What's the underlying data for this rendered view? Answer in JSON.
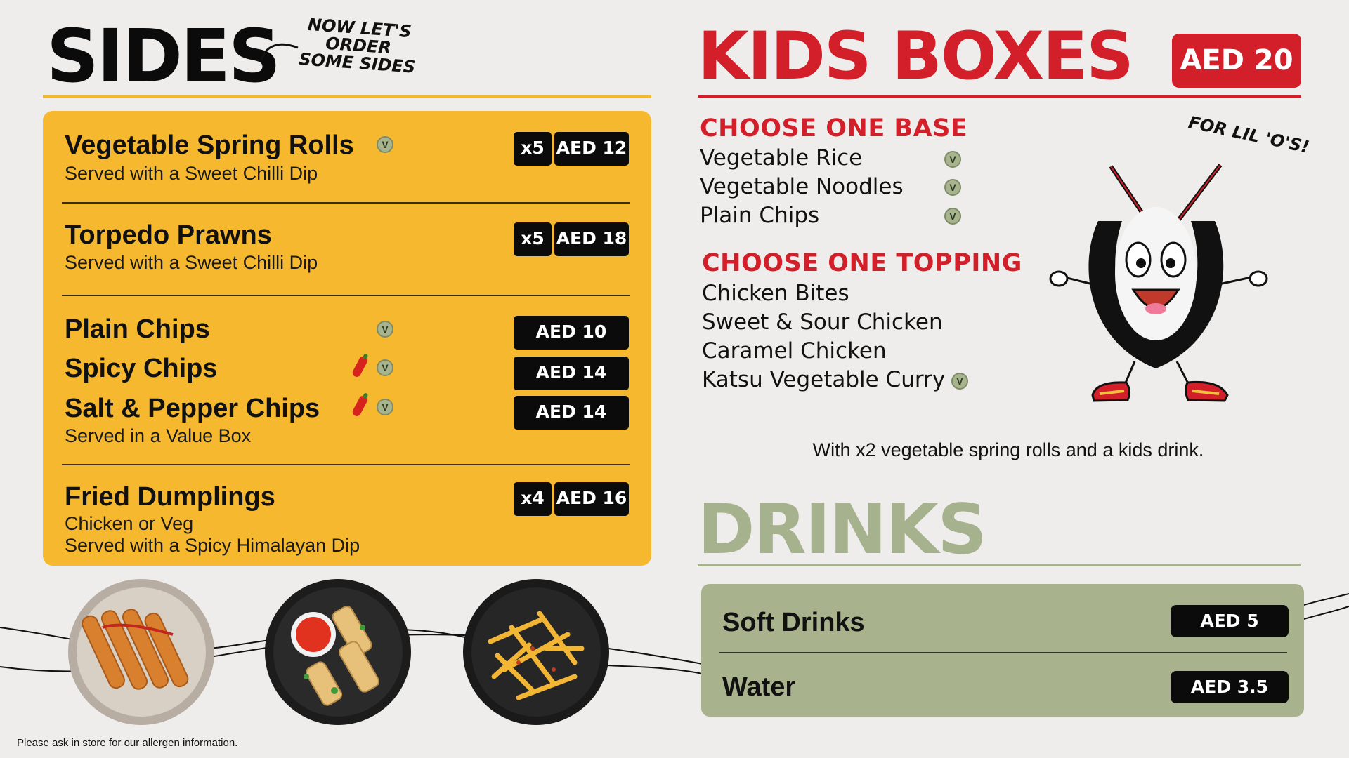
{
  "sides": {
    "title": "SIDES",
    "tagline": "NOW LET'S ORDER SOME SIDES",
    "items": [
      {
        "name": "Vegetable Spring Rolls",
        "desc": "Served with a Sweet Chilli Dip",
        "qty": "x5",
        "price": "AED 12",
        "vegetarian": true,
        "spicy": false
      },
      {
        "name": "Torpedo Prawns",
        "desc": "Served with a Sweet Chilli Dip",
        "qty": "x5",
        "price": "AED 18",
        "vegetarian": false,
        "spicy": false
      },
      {
        "name": "Plain Chips",
        "price": "AED 10",
        "vegetarian": true,
        "spicy": false
      },
      {
        "name": "Spicy Chips",
        "price": "AED 14",
        "vegetarian": true,
        "spicy": true
      },
      {
        "name": "Salt & Pepper Chips",
        "desc": "Served in a Value Box",
        "price": "AED 14",
        "vegetarian": true,
        "spicy": true
      },
      {
        "name": "Fried Dumplings",
        "desc": "Chicken or Veg",
        "desc2": "Served with a Spicy Himalayan Dip",
        "qty": "x4",
        "price": "AED 16",
        "vegetarian": false,
        "spicy": false
      }
    ],
    "images": [
      "torpedo-prawns-photo",
      "spring-rolls-photo",
      "spicy-chips-photo"
    ]
  },
  "allergen_note": "Please ask in store for our allergen information.",
  "kids": {
    "title": "KIDS BOXES",
    "price": "AED 20",
    "base_heading": "CHOOSE ONE BASE",
    "bases": [
      {
        "label": "Vegetable Rice",
        "vegetarian": true
      },
      {
        "label": "Vegetable Noodles",
        "vegetarian": true
      },
      {
        "label": "Plain Chips",
        "vegetarian": true
      }
    ],
    "topping_heading": "CHOOSE ONE TOPPING",
    "toppings": [
      {
        "label": "Chicken Bites",
        "vegetarian": false
      },
      {
        "label": "Sweet & Sour Chicken",
        "vegetarian": false
      },
      {
        "label": "Caramel Chicken",
        "vegetarian": false
      },
      {
        "label": "Katsu Vegetable Curry",
        "vegetarian": true
      }
    ],
    "mascot_caption": "FOR LIL 'O'S!",
    "note": "With x2 vegetable spring rolls and a kids drink."
  },
  "drinks": {
    "title": "DRINKS",
    "items": [
      {
        "name": "Soft Drinks",
        "price": "AED 5"
      },
      {
        "name": "Water",
        "price": "AED 3.5"
      }
    ]
  },
  "icons": {
    "vegetarian": "V",
    "spicy": "chilli-icon"
  },
  "colors": {
    "sides_panel": "#f5b82e",
    "kids_red": "#d31f2a",
    "drinks_green": "#a8b38e",
    "tag_black": "#0b0b0b"
  }
}
